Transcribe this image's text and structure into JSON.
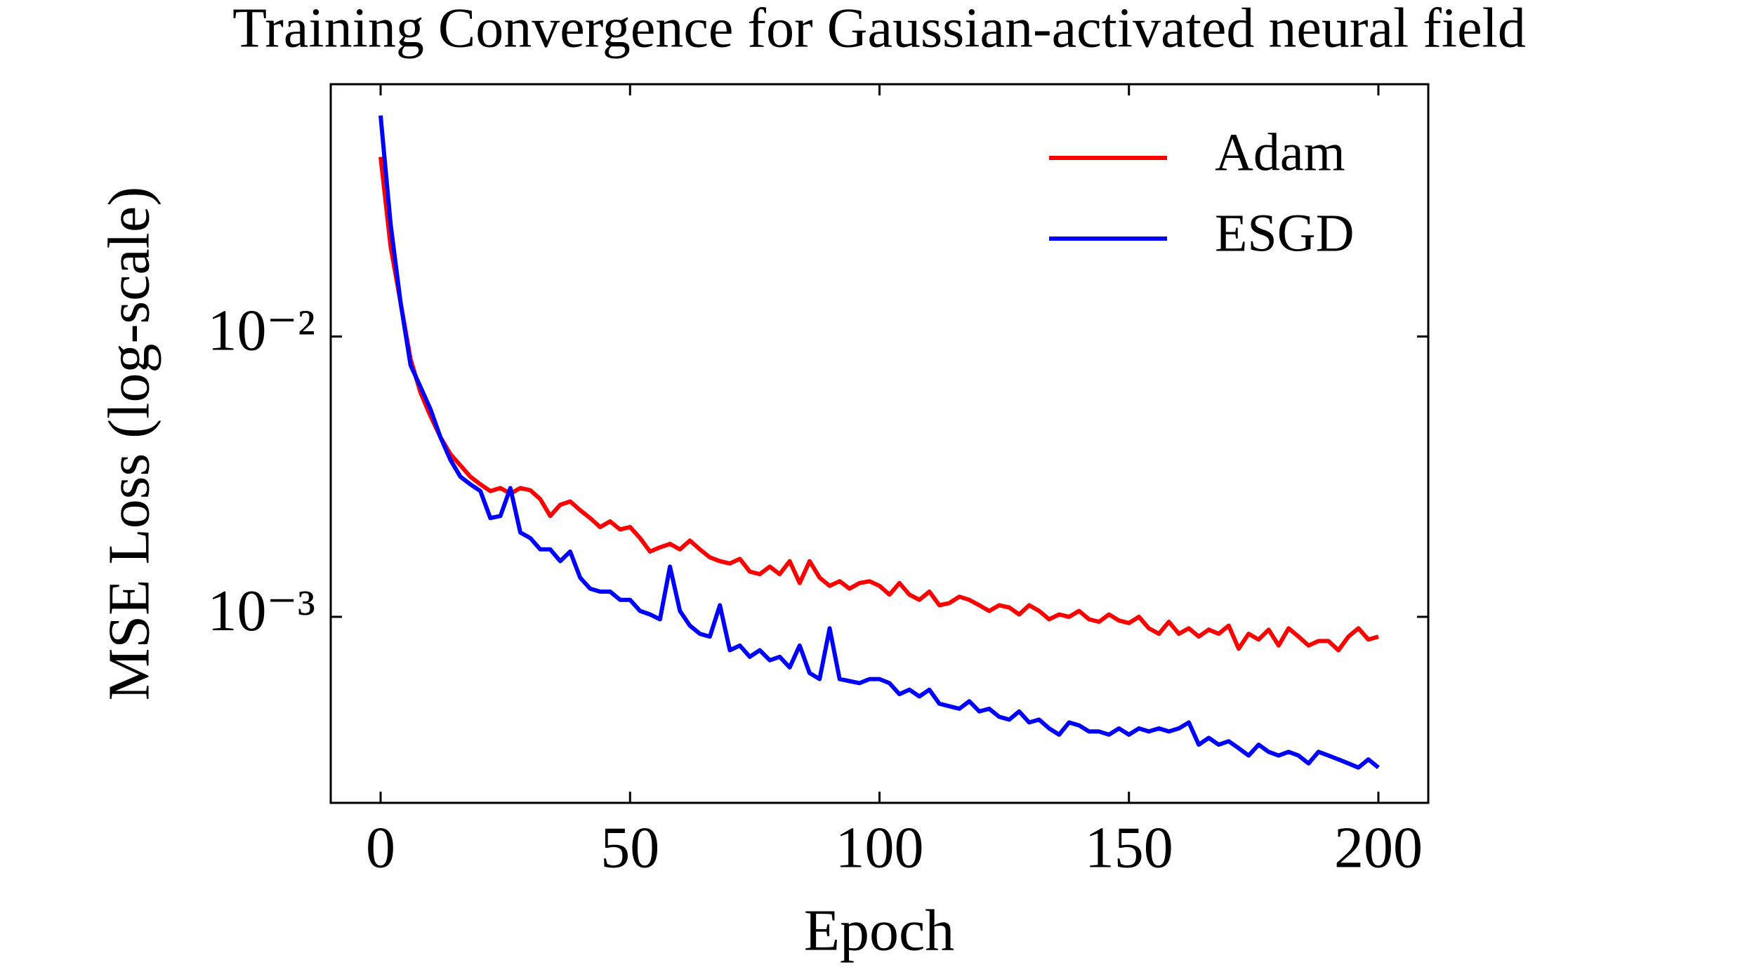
{
  "chart_data": {
    "type": "line",
    "title": "Training Convergence for Gaussian-activated neural field",
    "xlabel": "Epoch",
    "ylabel": "MSE Loss (log-scale)",
    "yscale": "log",
    "legend": "upper right",
    "xlim": [
      -10,
      210
    ],
    "xticks": [
      0,
      50,
      100,
      150,
      200
    ],
    "ylim": [
      0.000217,
      0.0794
    ],
    "yticks": [
      {
        "value": 0.01,
        "label": "10⁻²"
      },
      {
        "value": 0.001,
        "label": "10⁻³"
      }
    ],
    "x": [
      0,
      2,
      4,
      6,
      8,
      10,
      12,
      14,
      16,
      18,
      20,
      22,
      24,
      26,
      28,
      30,
      32,
      34,
      36,
      38,
      40,
      42,
      44,
      46,
      48,
      50,
      52,
      54,
      56,
      58,
      60,
      62,
      64,
      66,
      68,
      70,
      72,
      74,
      76,
      78,
      80,
      82,
      84,
      86,
      88,
      90,
      92,
      94,
      96,
      98,
      100,
      102,
      104,
      106,
      108,
      110,
      112,
      114,
      116,
      118,
      120,
      122,
      124,
      126,
      128,
      130,
      132,
      134,
      136,
      138,
      140,
      142,
      144,
      146,
      148,
      150,
      152,
      154,
      156,
      158,
      160,
      162,
      164,
      166,
      168,
      170,
      172,
      174,
      176,
      178,
      180,
      182,
      184,
      186,
      188,
      190,
      192,
      194,
      196,
      198,
      200
    ],
    "series": [
      {
        "name": "Adam",
        "color": "#ff0000",
        "values": [
          0.0437,
          0.0209,
          0.0132,
          0.0083,
          0.0063,
          0.0052,
          0.00437,
          0.0038,
          0.00347,
          0.00316,
          0.00297,
          0.00281,
          0.00288,
          0.00275,
          0.00288,
          0.00283,
          0.00263,
          0.00229,
          0.00251,
          0.00258,
          0.0024,
          0.00225,
          0.00209,
          0.00219,
          0.00205,
          0.00209,
          0.00191,
          0.00171,
          0.00177,
          0.00182,
          0.00174,
          0.00187,
          0.00174,
          0.00163,
          0.00158,
          0.00155,
          0.00161,
          0.00145,
          0.00142,
          0.00151,
          0.00142,
          0.00158,
          0.00132,
          0.00158,
          0.00138,
          0.00129,
          0.00134,
          0.00126,
          0.00132,
          0.00134,
          0.00129,
          0.0012,
          0.00132,
          0.0012,
          0.00115,
          0.00123,
          0.0011,
          0.00112,
          0.00118,
          0.00115,
          0.0011,
          0.00105,
          0.0011,
          0.00108,
          0.00102,
          0.0011,
          0.00105,
          0.00098,
          0.00102,
          0.001,
          0.00105,
          0.00098,
          0.00096,
          0.00102,
          0.00097,
          0.00095,
          0.001,
          0.00091,
          0.00087,
          0.00096,
          0.00087,
          0.00091,
          0.00085,
          0.0009,
          0.00087,
          0.00093,
          0.00077,
          0.00087,
          0.00083,
          0.0009,
          0.00079,
          0.00091,
          0.00085,
          0.00079,
          0.00082,
          0.00082,
          0.00076,
          0.00085,
          0.00091,
          0.00083,
          0.00085
        ]
      },
      {
        "name": "ESGD",
        "color": "#0000ff",
        "values": [
          0.0614,
          0.0251,
          0.0132,
          0.0079,
          0.0066,
          0.0055,
          0.00437,
          0.00363,
          0.00316,
          0.00297,
          0.00281,
          0.00225,
          0.00229,
          0.00288,
          0.002,
          0.00191,
          0.00174,
          0.00174,
          0.00158,
          0.00171,
          0.00138,
          0.00126,
          0.00123,
          0.00123,
          0.00115,
          0.00115,
          0.00105,
          0.00102,
          0.00098,
          0.00151,
          0.00105,
          0.00093,
          0.00087,
          0.00085,
          0.0011,
          0.00076,
          0.00079,
          0.00072,
          0.00076,
          0.0007,
          0.00072,
          0.00066,
          0.00079,
          0.00063,
          0.0006,
          0.00091,
          0.0006,
          0.00059,
          0.00058,
          0.0006,
          0.0006,
          0.00058,
          0.00053,
          0.00055,
          0.00052,
          0.00055,
          0.00049,
          0.00048,
          0.00047,
          0.0005,
          0.00046,
          0.00047,
          0.00044,
          0.00043,
          0.00046,
          0.00042,
          0.00043,
          0.0004,
          0.00038,
          0.00042,
          0.00041,
          0.00039,
          0.00039,
          0.00038,
          0.0004,
          0.00038,
          0.0004,
          0.00039,
          0.0004,
          0.00039,
          0.0004,
          0.00042,
          0.00035,
          0.00037,
          0.00035,
          0.00036,
          0.00034,
          0.00032,
          0.00035,
          0.00033,
          0.00032,
          0.00033,
          0.00032,
          0.0003,
          0.00033,
          0.00032,
          0.00031,
          0.0003,
          0.00029,
          0.00031,
          0.00029
        ]
      }
    ]
  }
}
